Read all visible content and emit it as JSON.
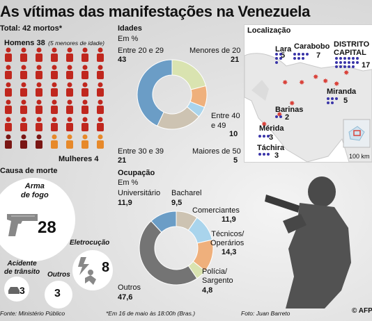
{
  "title": "As vítimas das manifestações na Venezuela",
  "total": "Total: 42 mortos*",
  "men": {
    "label": "Homens 38",
    "note": "(5 menores de idade)"
  },
  "women": {
    "label": "Mulheres 4"
  },
  "ages": {
    "heading": "Idades",
    "unit": "Em %",
    "labels": [
      {
        "name": "Entre 20 e 29",
        "value": "43"
      },
      {
        "name": "Menores de 20",
        "value": "21"
      },
      {
        "name": "Entre 40\ne 49",
        "value": "10"
      },
      {
        "name": "Maiores de 50",
        "value": "5"
      },
      {
        "name": "Entre 30 e 39",
        "value": "21"
      }
    ]
  },
  "occupation": {
    "heading": "Ocupação",
    "unit": "Em %",
    "labels": [
      {
        "name": "Universitário",
        "value": "11,9"
      },
      {
        "name": "Bacharel",
        "value": "9,5"
      },
      {
        "name": "Comerciantes",
        "value": "11,9"
      },
      {
        "name": "Técnicos/\nOperários",
        "value": "14,3"
      },
      {
        "name": "Polícia/\nSargento",
        "value": "4,8"
      },
      {
        "name": "Outros",
        "value": "47,6"
      }
    ]
  },
  "causes": {
    "heading": "Causa de morte",
    "items": [
      {
        "name": "Arma\nde fogo",
        "value": "28"
      },
      {
        "name": "Eletrocução",
        "value": "8"
      },
      {
        "name": "Acidente\nde trânsito",
        "value": "3"
      },
      {
        "name": "Outros",
        "value": "3"
      }
    ]
  },
  "location": {
    "heading": "Localização",
    "places": [
      {
        "name": "Lara",
        "value": "5"
      },
      {
        "name": "Carabobo",
        "value": "7"
      },
      {
        "name": "DISTRITO\nCAPITAL",
        "value": "17"
      },
      {
        "name": "Miranda",
        "value": "5"
      },
      {
        "name": "Barinas",
        "value": "2"
      },
      {
        "name": "Mérida",
        "value": "3"
      },
      {
        "name": "Táchira",
        "value": "3"
      }
    ],
    "scale": "100 km"
  },
  "footer": {
    "source": "Fonte: Ministério Público",
    "note": "*Em 16 de maio às 18:00h (Bras.)",
    "photo": "Foto: Juan Barreto",
    "agency": "© AFP"
  },
  "colors": {
    "men": "#c0271e",
    "men_minor": "#7a1614",
    "women": "#e7892a",
    "dot": "#3a35a8",
    "blue": "#6b9dc6",
    "green": "#d9e3b0",
    "lightblue": "#a9d4ec",
    "tan": "#cdc3b2",
    "orange": "#efb07c",
    "grey": "#747474"
  },
  "chart_data": [
    {
      "type": "pie",
      "title": "Idades",
      "categories": [
        "Entre 20 e 29",
        "Menores de 20",
        "Entre 40 e 49",
        "Maiores de 50",
        "Entre 30 e 39"
      ],
      "values": [
        43,
        21,
        10,
        5,
        21
      ],
      "unit": "%"
    },
    {
      "type": "pie",
      "title": "Ocupação",
      "categories": [
        "Bacharel",
        "Comerciantes",
        "Técnicos/Operários",
        "Polícia/Sargento",
        "Outros",
        "Universitário"
      ],
      "values": [
        9.5,
        11.9,
        14.3,
        4.8,
        47.6,
        11.9
      ],
      "unit": "%"
    },
    {
      "type": "bar",
      "title": "Causa de morte",
      "categories": [
        "Arma de fogo",
        "Eletrocução",
        "Acidente de trânsito",
        "Outros"
      ],
      "values": [
        28,
        8,
        3,
        3
      ]
    },
    {
      "type": "bar",
      "title": "Localização",
      "categories": [
        "Lara",
        "Carabobo",
        "DISTRITO CAPITAL",
        "Miranda",
        "Barinas",
        "Mérida",
        "Táchira"
      ],
      "values": [
        5,
        7,
        17,
        5,
        2,
        3,
        3
      ]
    }
  ]
}
